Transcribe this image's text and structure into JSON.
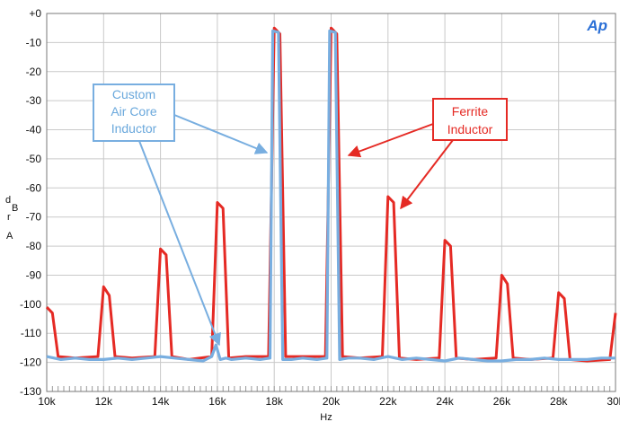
{
  "colors": {
    "red_series": "#e52a24",
    "blue_series": "#78aee0",
    "grid": "#c9c9c9",
    "plot_border": "#7a7a7a",
    "logo": "#2a6fd6"
  },
  "logo_text": "Ap",
  "chart_data": {
    "type": "line",
    "xlabel": "Hz",
    "ylabel_chars": [
      "d",
      "B",
      "r",
      "A"
    ],
    "xlim": [
      10000,
      30000
    ],
    "ylim": [
      -130,
      0
    ],
    "grid": true,
    "x_ticks": [
      {
        "value": 10000,
        "label": "10k"
      },
      {
        "value": 12000,
        "label": "12k"
      },
      {
        "value": 14000,
        "label": "14k"
      },
      {
        "value": 16000,
        "label": "16k"
      },
      {
        "value": 18000,
        "label": "18k"
      },
      {
        "value": 20000,
        "label": "20k"
      },
      {
        "value": 22000,
        "label": "22k"
      },
      {
        "value": 24000,
        "label": "24k"
      },
      {
        "value": 26000,
        "label": "26k"
      },
      {
        "value": 28000,
        "label": "28k"
      },
      {
        "value": 30000,
        "label": "30k"
      }
    ],
    "y_ticks": [
      {
        "value": 0,
        "label": "+0"
      },
      {
        "value": -10,
        "label": "-10"
      },
      {
        "value": -20,
        "label": "-20"
      },
      {
        "value": -30,
        "label": "-30"
      },
      {
        "value": -40,
        "label": "-40"
      },
      {
        "value": -50,
        "label": "-50"
      },
      {
        "value": -60,
        "label": "-60"
      },
      {
        "value": -70,
        "label": "-70"
      },
      {
        "value": -80,
        "label": "-80"
      },
      {
        "value": -90,
        "label": "-90"
      },
      {
        "value": -100,
        "label": "-100"
      },
      {
        "value": -110,
        "label": "-110"
      },
      {
        "value": -120,
        "label": "-120"
      },
      {
        "value": -130,
        "label": "-130"
      }
    ],
    "series": [
      {
        "name": "Ferrite Inductor",
        "color": "#e52a24",
        "x": [
          10000,
          10200,
          10400,
          11000,
          11800,
          12000,
          12200,
          12400,
          13000,
          13800,
          14000,
          14200,
          14400,
          15000,
          15800,
          16000,
          16200,
          16400,
          17000,
          17800,
          18000,
          18200,
          18400,
          19000,
          19800,
          20000,
          20200,
          20400,
          21000,
          21800,
          22000,
          22200,
          22400,
          23000,
          23800,
          24000,
          24200,
          24400,
          25000,
          25800,
          26000,
          26200,
          26400,
          27000,
          27800,
          28000,
          28200,
          28400,
          29000,
          29800,
          30000
        ],
        "y": [
          -101,
          -103,
          -118,
          -118.5,
          -118,
          -94,
          -97,
          -118,
          -118.5,
          -118,
          -81,
          -83,
          -118,
          -119,
          -118,
          -65,
          -67,
          -118.5,
          -118,
          -118,
          -5,
          -7,
          -118,
          -118,
          -118,
          -5,
          -7,
          -118,
          -118.5,
          -118,
          -63,
          -65,
          -118.5,
          -119,
          -118.5,
          -78,
          -80,
          -118.5,
          -119,
          -118.5,
          -90,
          -93,
          -118.5,
          -119,
          -118.5,
          -96,
          -98,
          -119,
          -119.5,
          -119,
          -103
        ]
      },
      {
        "name": "Custom Air Core Inductor",
        "color": "#78aee0",
        "x": [
          10000,
          10500,
          11000,
          11500,
          12000,
          12500,
          13000,
          13500,
          14000,
          14500,
          15000,
          15500,
          15800,
          15950,
          16100,
          16300,
          16500,
          17000,
          17500,
          17850,
          17950,
          18150,
          18300,
          18600,
          19000,
          19500,
          19850,
          19950,
          20150,
          20300,
          20600,
          21000,
          21500,
          22000,
          22500,
          23000,
          23500,
          24000,
          24500,
          25000,
          25500,
          26000,
          26500,
          27000,
          27500,
          28000,
          28500,
          29000,
          29500,
          30000
        ],
        "y": [
          -118,
          -119,
          -118.5,
          -119,
          -119,
          -118.5,
          -119,
          -118.5,
          -118,
          -118.5,
          -119,
          -119.5,
          -118,
          -114,
          -119,
          -118.5,
          -119,
          -118.5,
          -119,
          -118.5,
          -6,
          -6.5,
          -119,
          -119,
          -118.5,
          -119,
          -118.5,
          -6,
          -6.5,
          -119,
          -118.5,
          -118.5,
          -119,
          -118,
          -119,
          -118.5,
          -119,
          -119.5,
          -118.5,
          -119,
          -119.5,
          -119.5,
          -119,
          -119,
          -118.5,
          -119,
          -119,
          -119,
          -118.5,
          -118.5
        ]
      }
    ],
    "annotations": [
      {
        "lines": [
          "Ferrite",
          "Inductor"
        ],
        "series": "Ferrite Inductor"
      },
      {
        "lines": [
          "Custom",
          "Air Core",
          "Inductor"
        ],
        "series": "Custom Air Core Inductor"
      }
    ]
  }
}
